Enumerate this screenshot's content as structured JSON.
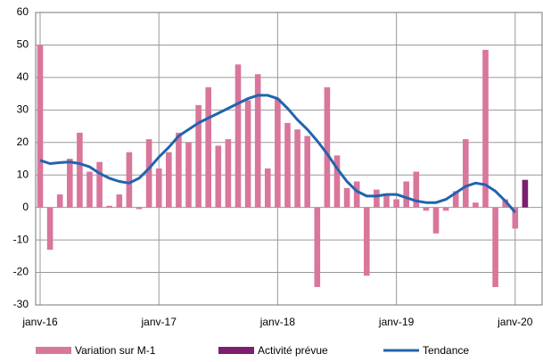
{
  "chart_data": {
    "type": "bar",
    "categories": [
      "janv-16",
      null,
      null,
      null,
      null,
      null,
      null,
      null,
      null,
      null,
      null,
      null,
      "janv-17",
      null,
      null,
      null,
      null,
      null,
      null,
      null,
      null,
      null,
      null,
      null,
      "janv-18",
      null,
      null,
      null,
      null,
      null,
      null,
      null,
      null,
      null,
      null,
      null,
      "janv-19",
      null,
      null,
      null,
      null,
      null,
      null,
      null,
      null,
      null,
      null,
      null,
      "janv-20",
      null
    ],
    "series": [
      {
        "name": "Variation sur M-1",
        "color": "#d9769c",
        "kind": "bar",
        "values": [
          50,
          -13,
          4,
          15,
          23,
          11,
          14,
          0.5,
          4,
          17,
          -0.5,
          21,
          12,
          17,
          23,
          20,
          31.5,
          37,
          19,
          21,
          44,
          33,
          41,
          12,
          33.5,
          26,
          24,
          22,
          -24.5,
          37,
          16,
          6,
          8,
          -21,
          5.5,
          4,
          2.5,
          8,
          11,
          -1,
          -8,
          -1,
          5,
          21,
          1.5,
          48.5,
          -24.5,
          2.5,
          -6.5,
          null
        ]
      },
      {
        "name": "Activité prévue",
        "color": "#7b1f6e",
        "kind": "bar",
        "values": [
          null,
          null,
          null,
          null,
          null,
          null,
          null,
          null,
          null,
          null,
          null,
          null,
          null,
          null,
          null,
          null,
          null,
          null,
          null,
          null,
          null,
          null,
          null,
          null,
          null,
          null,
          null,
          null,
          null,
          null,
          null,
          null,
          null,
          null,
          null,
          null,
          null,
          null,
          null,
          null,
          null,
          null,
          null,
          null,
          null,
          null,
          null,
          null,
          null,
          8.5
        ]
      },
      {
        "name": "Tendance",
        "color": "#2164ae",
        "kind": "line",
        "values": [
          14.5,
          13.5,
          13.8,
          14,
          13.5,
          12.5,
          10.5,
          9,
          8,
          7.5,
          9,
          12,
          15.5,
          18.5,
          22,
          24,
          26,
          27.5,
          29,
          30.5,
          32,
          33.5,
          34.5,
          34.5,
          33.5,
          30.5,
          27,
          24,
          20.5,
          16.5,
          12,
          8,
          5,
          3.5,
          3.5,
          4,
          4,
          3,
          2,
          1.5,
          1.5,
          2.5,
          4.5,
          6.5,
          7.5,
          7,
          5,
          2,
          -1.5,
          null
        ]
      }
    ],
    "ylim": [
      -30,
      60
    ],
    "yticks": [
      -30,
      -20,
      -10,
      0,
      10,
      20,
      30,
      40,
      50,
      60
    ],
    "grid": true
  }
}
